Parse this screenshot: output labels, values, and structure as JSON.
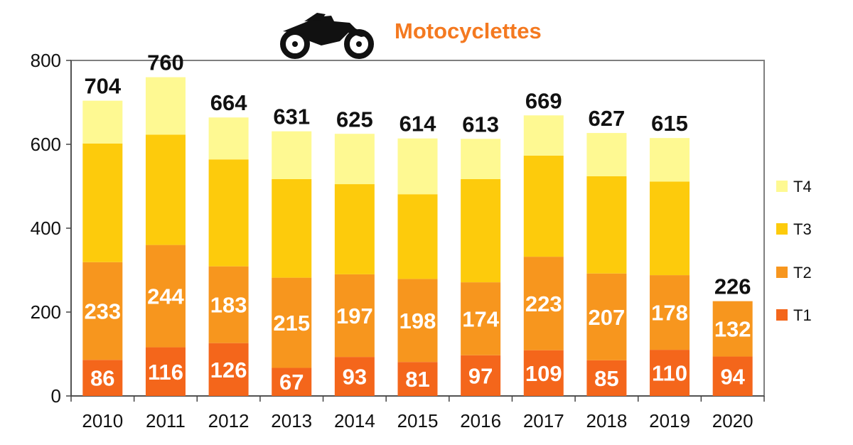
{
  "chart_data": {
    "type": "bar",
    "stacked": true,
    "title": "Motocyclettes",
    "title_icon": "motorcycle-icon",
    "categories": [
      "2010",
      "2011",
      "2012",
      "2013",
      "2014",
      "2015",
      "2016",
      "2017",
      "2018",
      "2019",
      "2020"
    ],
    "series": [
      {
        "name": "T1",
        "color": "#f4661b",
        "values": [
          86,
          116,
          126,
          67,
          93,
          81,
          97,
          109,
          85,
          110,
          94
        ]
      },
      {
        "name": "T2",
        "color": "#f7961e",
        "values": [
          233,
          244,
          183,
          215,
          197,
          198,
          174,
          223,
          207,
          178,
          132
        ]
      },
      {
        "name": "T3",
        "color": "#fdcb0c",
        "values": [
          283,
          263,
          255,
          235,
          215,
          202,
          246,
          241,
          232,
          223,
          0
        ]
      },
      {
        "name": "T4",
        "color": "#fef992",
        "values": [
          102,
          137,
          100,
          114,
          120,
          133,
          96,
          96,
          103,
          104,
          0
        ]
      }
    ],
    "totals": [
      704,
      760,
      664,
      631,
      625,
      614,
      613,
      669,
      627,
      615,
      226
    ],
    "ylim": [
      0,
      800
    ],
    "yticks": [
      0,
      200,
      400,
      600,
      800
    ],
    "legend": "right",
    "grid": false,
    "title_color": "#f47920"
  }
}
